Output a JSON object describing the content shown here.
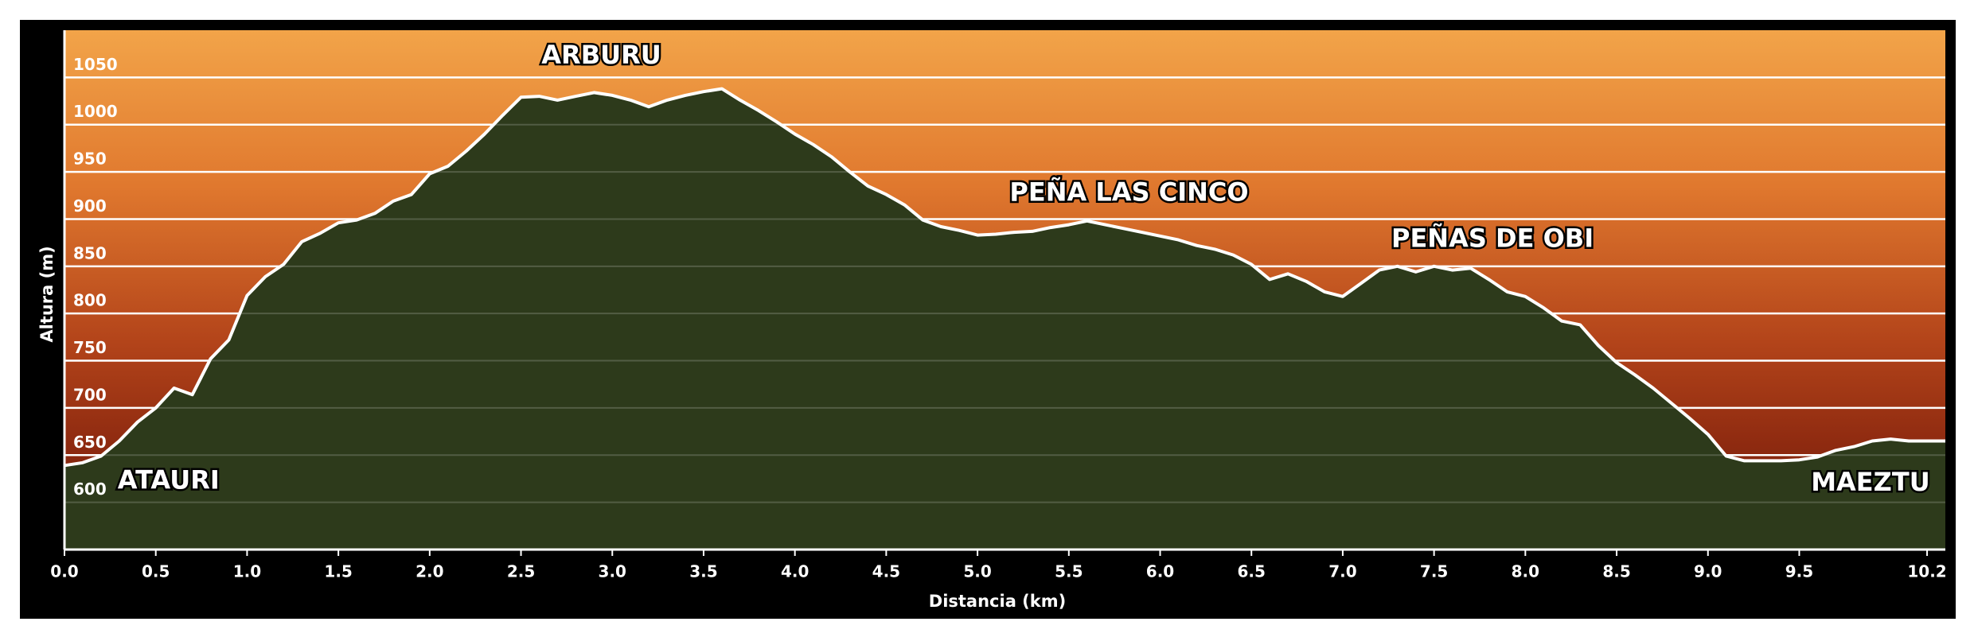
{
  "chart_data": {
    "type": "area",
    "x_label": "Distancia  (km)",
    "y_label": "Altura (m)",
    "annotations": [
      "ARBURU",
      "PEÑA LAS CINCO",
      "PEÑAS DE OBI",
      "ATAURI",
      "MAEZTU"
    ],
    "x": [
      0,
      0.1,
      0.2,
      0.3,
      0.4,
      0.5,
      0.6,
      0.7,
      0.8,
      0.9,
      1,
      1.1,
      1.2,
      1.3,
      1.4,
      1.5,
      1.6,
      1.7,
      1.8,
      1.9,
      2,
      2.1,
      2.2,
      2.3,
      2.4,
      2.5,
      2.6,
      2.7,
      2.8,
      2.9,
      3,
      3.1,
      3.2,
      3.3,
      3.4,
      3.5,
      3.6,
      3.7,
      3.8,
      3.9,
      4,
      4.1,
      4.2,
      4.3,
      4.4,
      4.5,
      4.6,
      4.7,
      4.8,
      4.9,
      5,
      5.1,
      5.2,
      5.3,
      5.4,
      5.5,
      5.6,
      5.7,
      5.8,
      5.9,
      6,
      6.1,
      6.2,
      6.3,
      6.4,
      6.5,
      6.6,
      6.7,
      6.8,
      6.9,
      7,
      7.1,
      7.2,
      7.3,
      7.4,
      7.5,
      7.6,
      7.7,
      7.8,
      7.9,
      8,
      8.1,
      8.2,
      8.3,
      8.4,
      8.5,
      8.6,
      8.7,
      8.8,
      8.9,
      9,
      9.1,
      9.2,
      9.3,
      9.4,
      9.5,
      9.6,
      9.7,
      9.8,
      9.9,
      10,
      10.1,
      10.2,
      10.3
    ],
    "values": [
      639,
      642,
      649,
      665,
      685,
      700,
      721,
      714,
      752,
      772,
      819,
      839,
      852,
      876,
      885,
      896,
      899,
      906,
      919,
      926,
      948,
      956,
      972,
      990,
      1010,
      1029,
      1030,
      1026,
      1030,
      1034,
      1031,
      1026,
      1019,
      1026,
      1031,
      1035,
      1038,
      1026,
      1015,
      1003,
      990,
      979,
      966,
      950,
      935,
      926,
      915,
      899,
      892,
      888,
      883,
      884,
      886,
      887,
      891,
      894,
      898,
      894,
      890,
      886,
      882,
      878,
      872,
      868,
      862,
      852,
      836,
      842,
      834,
      823,
      818,
      832,
      846,
      850,
      844,
      850,
      846,
      848,
      836,
      823,
      818,
      806,
      792,
      788,
      766,
      748,
      735,
      721,
      705,
      689,
      672,
      649,
      644,
      644,
      644,
      645,
      648,
      655,
      659,
      665,
      667,
      665,
      665,
      665
    ],
    "color": "#2d3a1b",
    "line_color": "#ffffff",
    "xlim": [
      0,
      10.3
    ],
    "xticks": [
      {
        "value": 0,
        "label": "0.0"
      },
      0.5,
      {
        "value": 1,
        "label": "1.0"
      },
      1.5,
      {
        "value": 2,
        "label": "2.0"
      },
      2.5,
      {
        "value": 3,
        "label": "3.0"
      },
      3.5,
      {
        "value": 4,
        "label": "4.0"
      },
      4.5,
      {
        "value": 5,
        "label": "5.0"
      },
      5.5,
      {
        "value": 6,
        "label": "6.0"
      },
      6.5,
      {
        "value": 7,
        "label": "7.0"
      },
      7.5,
      {
        "value": 8,
        "label": "8.0"
      },
      8.5,
      {
        "value": 9,
        "label": "9.0"
      },
      9.5,
      10.2
    ],
    "ylim": [
      550,
      1100
    ],
    "yticks": [
      600,
      650,
      700,
      750,
      800,
      850,
      900,
      950,
      1000,
      1050
    ],
    "grid": true
  }
}
